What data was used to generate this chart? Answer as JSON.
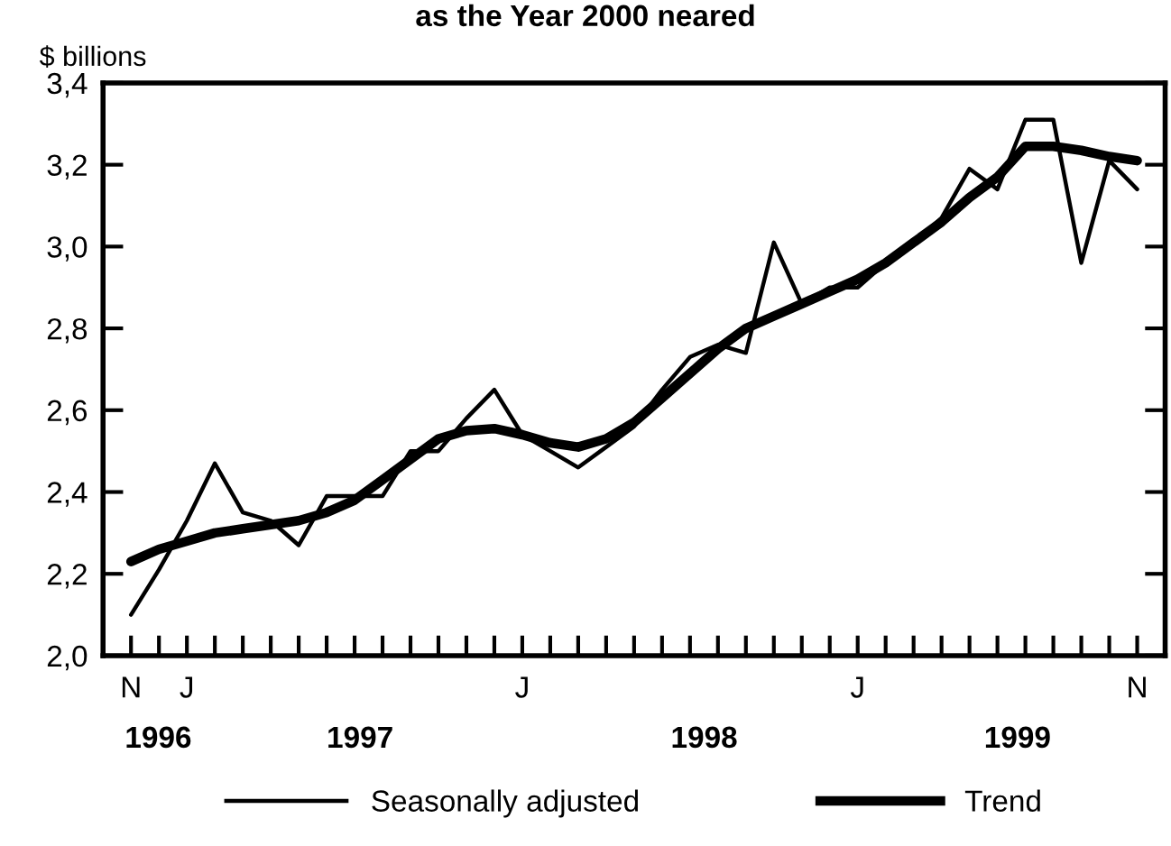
{
  "chart_data": {
    "type": "line",
    "title": "as the Year 2000 neared",
    "ylabel": "$ billions",
    "categories": [
      "N",
      null,
      "J",
      null,
      null,
      null,
      null,
      null,
      null,
      null,
      null,
      null,
      null,
      null,
      "J",
      null,
      null,
      null,
      null,
      null,
      null,
      null,
      null,
      null,
      null,
      null,
      "J",
      null,
      null,
      null,
      null,
      null,
      null,
      null,
      null,
      null,
      "N"
    ],
    "series": [
      {
        "name": "Seasonally adjusted",
        "color": "#000000",
        "values": [
          2.1,
          2.21,
          2.33,
          2.47,
          2.35,
          2.33,
          2.27,
          2.39,
          2.39,
          2.39,
          2.5,
          2.5,
          2.58,
          2.65,
          2.54,
          2.5,
          2.46,
          2.51,
          2.56,
          2.65,
          2.73,
          2.76,
          2.74,
          3.01,
          2.86,
          2.9,
          2.9,
          2.96,
          3.01,
          3.07,
          3.19,
          3.14,
          3.31,
          3.31,
          2.96,
          3.21,
          3.14
        ]
      },
      {
        "name": "Trend",
        "color": "#000000",
        "values": [
          2.23,
          2.26,
          2.28,
          2.3,
          2.31,
          2.32,
          2.33,
          2.35,
          2.38,
          2.43,
          2.48,
          2.53,
          2.55,
          2.555,
          2.54,
          2.52,
          2.51,
          2.53,
          2.57,
          2.63,
          2.69,
          2.75,
          2.8,
          2.83,
          2.86,
          2.89,
          2.92,
          2.96,
          3.01,
          3.06,
          3.12,
          3.17,
          3.245,
          3.245,
          3.235,
          3.22,
          3.21
        ]
      }
    ],
    "ylim": [
      2.0,
      3.4
    ],
    "yticks": [
      {
        "value": 2.0,
        "label": "2,0"
      },
      {
        "value": 2.2,
        "label": "2,2"
      },
      {
        "value": 2.4,
        "label": "2,4"
      },
      {
        "value": 2.6,
        "label": "2,6"
      },
      {
        "value": 2.8,
        "label": "2,8"
      },
      {
        "value": 3.0,
        "label": "3,0"
      },
      {
        "value": 3.2,
        "label": "3,2"
      },
      {
        "value": 3.4,
        "label": "3,4"
      }
    ],
    "annotations": [
      "1996",
      "1997",
      "1998",
      "1999"
    ],
    "grid": false,
    "legend": "bottom",
    "marker": "none",
    "line_style": "solid"
  }
}
